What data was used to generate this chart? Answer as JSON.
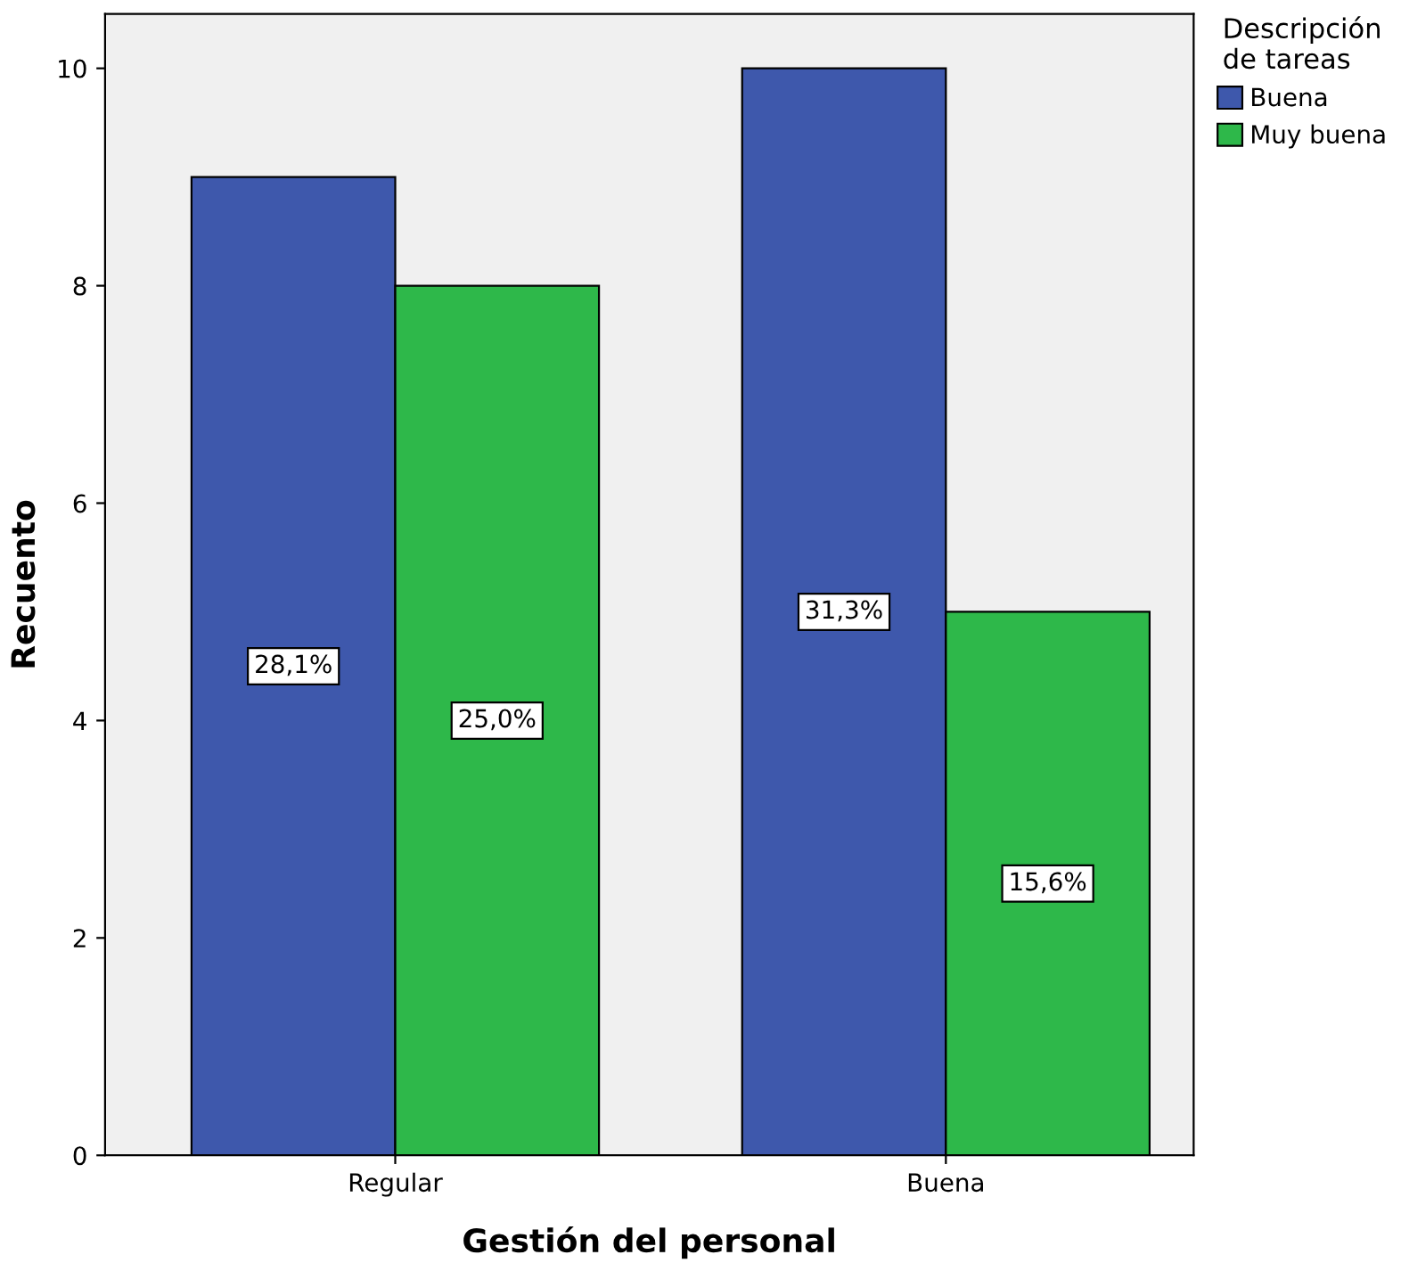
{
  "chart_data": {
    "type": "bar",
    "xlabel": "Gestión del personal",
    "ylabel": "Recuento",
    "legend_title": "Descripción\nde tareas",
    "categories": [
      "Regular",
      "Buena"
    ],
    "series": [
      {
        "name": "Buena",
        "color": "#3e58ac",
        "values": [
          9,
          10
        ]
      },
      {
        "name": "Muy buena",
        "color": "#2eb84a",
        "values": [
          8,
          5
        ]
      }
    ],
    "annotations": [
      "28,1%",
      "31,3%",
      "25,0%",
      "15,6%"
    ],
    "ylim": [
      0,
      10.5
    ],
    "yticks": [
      0,
      2,
      4,
      6,
      8,
      10
    ],
    "grid": false,
    "legend": "top right"
  }
}
